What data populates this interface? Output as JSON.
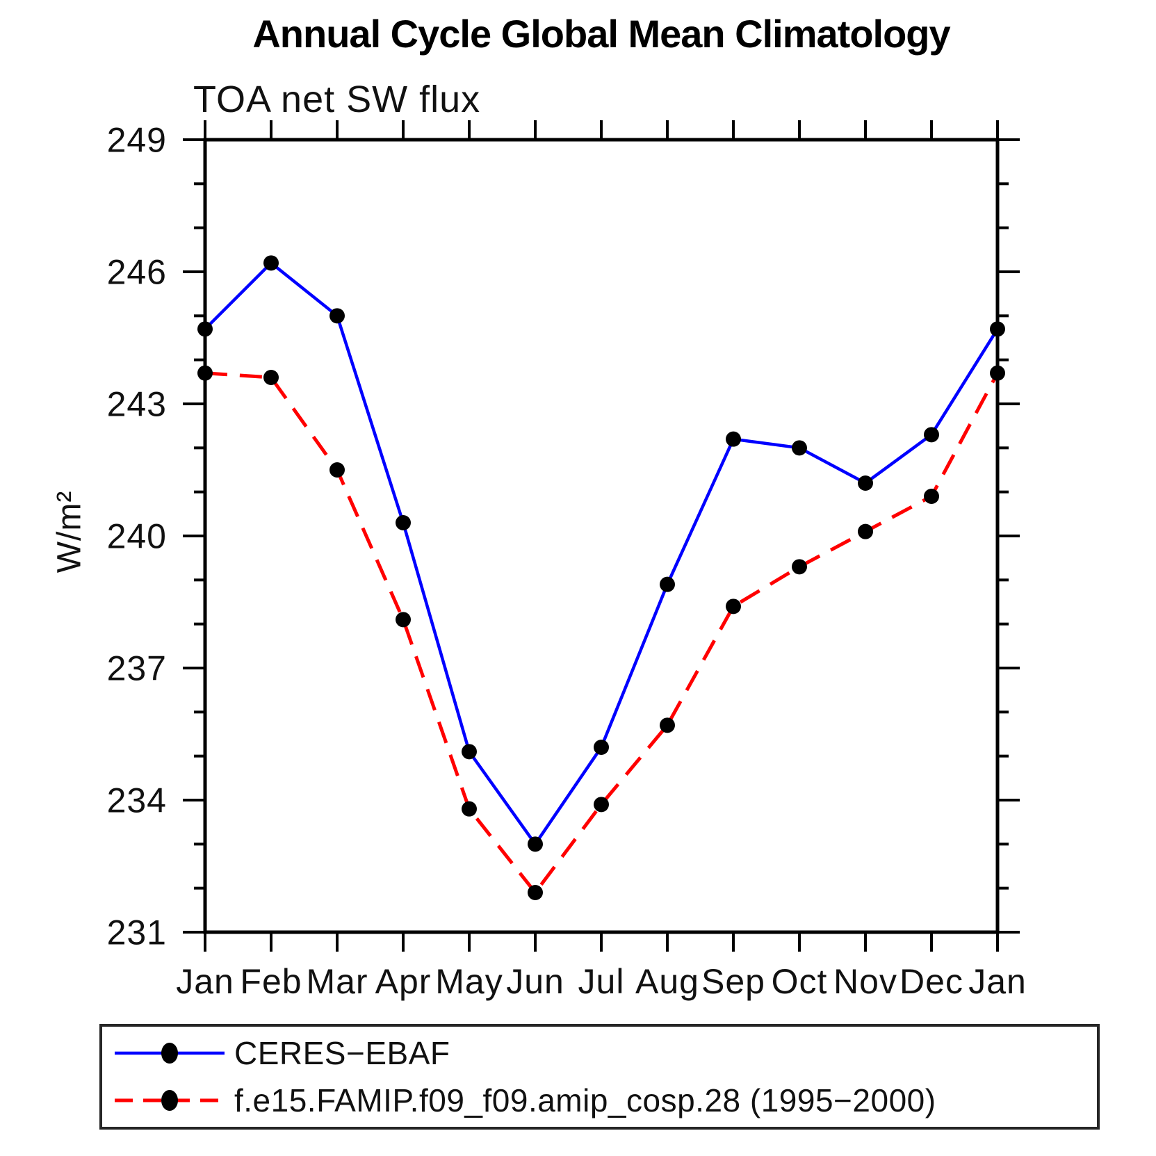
{
  "title": "Annual Cycle Global Mean Climatology",
  "subtitle": "TOA net SW flux",
  "ylabel": "W/m²",
  "chart_data": {
    "type": "line",
    "title": "Annual Cycle Global Mean Climatology",
    "subtitle": "TOA net SW flux",
    "xlabel": "",
    "ylabel": "W/m²",
    "x_categories": [
      "Jan",
      "Feb",
      "Mar",
      "Apr",
      "May",
      "Jun",
      "Jul",
      "Aug",
      "Sep",
      "Oct",
      "Nov",
      "Dec",
      "Jan"
    ],
    "ylim": [
      231,
      249
    ],
    "y_major_ticks": [
      231,
      234,
      237,
      240,
      243,
      246,
      249
    ],
    "y_minor_step": 1,
    "grid": "off",
    "legend_position": "bottom",
    "frame_color": "#000000",
    "marker_radius": 11,
    "series": [
      {
        "name": "CERES−EBAF",
        "color": "#0000ff",
        "style": "solid",
        "line_width": 4.5,
        "marker": "circle",
        "marker_color": "#000000",
        "values": [
          244.7,
          246.2,
          245.0,
          240.3,
          235.1,
          233.0,
          235.2,
          238.9,
          242.2,
          242.0,
          241.2,
          242.3,
          244.7
        ]
      },
      {
        "name": "f.e15.FAMIP.f09_f09.amip_cosp.28 (1995−2000)",
        "color": "#ff0000",
        "style": "dashed",
        "line_width": 5,
        "marker": "circle",
        "marker_color": "#000000",
        "values": [
          243.7,
          243.6,
          241.5,
          238.1,
          233.8,
          231.9,
          233.9,
          235.7,
          238.4,
          239.3,
          240.1,
          240.9,
          243.7
        ]
      }
    ]
  }
}
